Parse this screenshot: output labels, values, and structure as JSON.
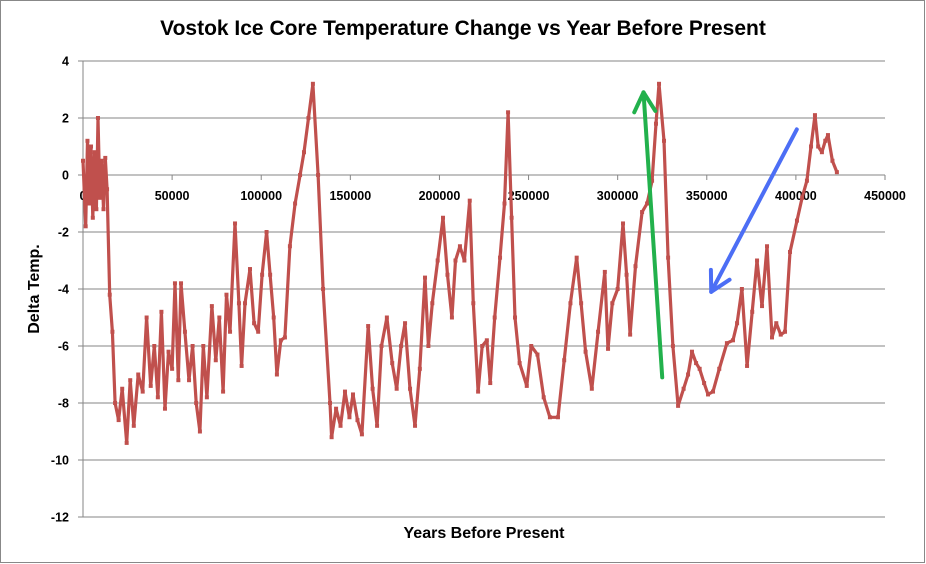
{
  "chart_data": {
    "type": "line",
    "title": "Vostok Ice Core Temperature Change vs Year Before Present",
    "xlabel": "Years Before Present",
    "ylabel": "Delta Temp.",
    "xlim": [
      0,
      450000
    ],
    "ylim": [
      -12,
      4
    ],
    "xticks": [
      "0",
      "50000",
      "100000",
      "150000",
      "200000",
      "250000",
      "300000",
      "350000",
      "400000",
      "450000"
    ],
    "xtick_values": [
      0,
      50000,
      100000,
      150000,
      200000,
      250000,
      300000,
      350000,
      400000,
      450000
    ],
    "yticks": [
      "4",
      "2",
      "0",
      "-2",
      "-4",
      "-6",
      "-8",
      "-10",
      "-12"
    ],
    "ytick_values": [
      4,
      2,
      0,
      -2,
      -4,
      -6,
      -8,
      -10,
      -12
    ],
    "grid": "horizontal",
    "legend": "none",
    "series": [
      {
        "name": "Delta Temp.",
        "color": "#C0504D",
        "x": [
          0,
          1500,
          2500,
          3500,
          4500,
          5500,
          6500,
          7500,
          8400,
          9500,
          10500,
          11500,
          12500,
          13500,
          15000,
          16500,
          18000,
          20000,
          22000,
          24500,
          26500,
          28500,
          31000,
          33500,
          35700,
          38000,
          40000,
          42000,
          44000,
          46000,
          48000,
          50000,
          51600,
          53500,
          55000,
          57200,
          59500,
          61500,
          63500,
          65600,
          67500,
          69500,
          72300,
          74500,
          76500,
          78600,
          80500,
          82500,
          85300,
          87500,
          89000,
          90900,
          93700,
          96000,
          98300,
          100500,
          103000,
          105000,
          107000,
          108800,
          111000,
          113300,
          116100,
          119000,
          121800,
          124000,
          126500,
          129000,
          131900,
          134700,
          138600,
          139500,
          142000,
          144500,
          147000,
          149500,
          151500,
          154000,
          156500,
          160000,
          162500,
          165000,
          167500,
          170500,
          173500,
          176000,
          178500,
          180700,
          183500,
          186300,
          189000,
          191900,
          193800,
          196000,
          199000,
          202000,
          204500,
          207000,
          209000,
          211500,
          214000,
          217000,
          219000,
          221700,
          224000,
          226600,
          228500,
          231000,
          234000,
          236500,
          238500,
          240500,
          242400,
          245000,
          249000,
          251500,
          255000,
          258500,
          262000,
          266500,
          270000,
          273500,
          277000,
          279500,
          282000,
          285500,
          289000,
          292800,
          294600,
          297000,
          300000,
          303000,
          305000,
          307000,
          310000,
          313700,
          316500,
          319300,
          321500,
          323200,
          326000,
          328300,
          331000,
          333900,
          337000,
          339500,
          341700,
          344000,
          346000,
          348500,
          350700,
          353500,
          357000,
          361300,
          364700,
          367000,
          369700,
          372600,
          375500,
          378200,
          381000,
          383800,
          386600,
          389000,
          391500,
          393900,
          396700,
          400600,
          403500,
          406200,
          408500,
          410700,
          412500,
          414600,
          416500,
          418000,
          420500,
          423000
        ],
        "y": [
          0.5,
          -1.8,
          1.2,
          -1.0,
          1.0,
          -1.5,
          0.8,
          -1.2,
          2.0,
          -0.8,
          0.5,
          -1.2,
          0.6,
          -0.5,
          -4.2,
          -5.5,
          -8.0,
          -8.6,
          -7.5,
          -9.4,
          -7.2,
          -8.8,
          -7.0,
          -7.6,
          -5.0,
          -7.4,
          -6.0,
          -7.8,
          -4.8,
          -8.2,
          -6.2,
          -6.8,
          -3.8,
          -7.2,
          -3.8,
          -5.5,
          -7.2,
          -6.0,
          -8.0,
          -9.0,
          -6.0,
          -7.8,
          -4.6,
          -6.5,
          -5.0,
          -7.6,
          -4.2,
          -5.5,
          -1.7,
          -4.5,
          -6.7,
          -4.5,
          -3.3,
          -5.2,
          -5.5,
          -3.5,
          -2.0,
          -3.5,
          -5.0,
          -7.0,
          -5.8,
          -5.7,
          -2.5,
          -1.0,
          0.0,
          0.8,
          2.0,
          3.2,
          0.0,
          -4.0,
          -8.0,
          -9.2,
          -8.2,
          -8.8,
          -7.6,
          -8.5,
          -7.7,
          -8.6,
          -9.1,
          -5.3,
          -7.5,
          -8.8,
          -6.0,
          -5.0,
          -6.6,
          -7.5,
          -6.0,
          -5.2,
          -7.5,
          -8.8,
          -6.8,
          -3.6,
          -6.0,
          -4.5,
          -3.0,
          -1.5,
          -3.5,
          -5.0,
          -3.0,
          -2.5,
          -3.0,
          -0.9,
          -4.5,
          -7.6,
          -6.0,
          -5.8,
          -7.3,
          -5.0,
          -2.9,
          -1.0,
          2.2,
          -1.5,
          -5.0,
          -6.6,
          -7.4,
          -6.0,
          -6.3,
          -7.8,
          -8.5,
          -8.5,
          -6.5,
          -4.5,
          -2.9,
          -4.5,
          -6.2,
          -7.5,
          -5.5,
          -3.4,
          -6.1,
          -4.5,
          -4.0,
          -1.7,
          -3.5,
          -5.6,
          -3.2,
          -1.3,
          -1.0,
          -0.2,
          1.8,
          3.2,
          1.2,
          -2.9,
          -6.0,
          -8.1,
          -7.5,
          -7.0,
          -6.2,
          -6.6,
          -6.8,
          -7.3,
          -7.7,
          -7.6,
          -6.8,
          -5.9,
          -5.8,
          -5.2,
          -4.0,
          -6.7,
          -4.8,
          -3.0,
          -4.6,
          -2.5,
          -5.7,
          -5.2,
          -5.6,
          -5.5,
          -2.7,
          -1.6,
          -0.8,
          -0.2,
          1.0,
          2.1,
          1.0,
          0.8,
          1.2,
          1.4,
          0.5,
          0.1
        ]
      }
    ],
    "annotations": [
      {
        "type": "arrow",
        "color": "#22B14C",
        "from": [
          325000,
          -7.1
        ],
        "to": [
          314500,
          2.9
        ]
      },
      {
        "type": "arrow",
        "color": "#4C6EF5",
        "from": [
          400500,
          1.6
        ],
        "to": [
          352500,
          -4.1
        ]
      }
    ]
  }
}
